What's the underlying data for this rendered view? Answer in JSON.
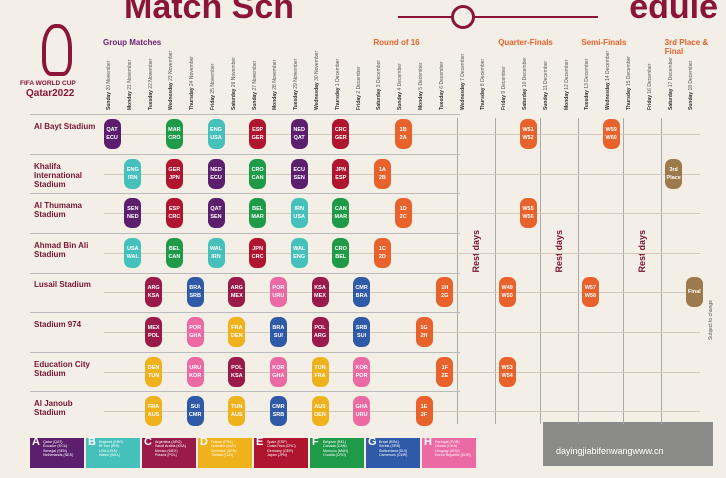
{
  "title_left": "Match Sch",
  "title_right": "edule",
  "logo": {
    "line1": "FIFA WORLD CUP",
    "line2": "Qatar2022"
  },
  "segments": [
    {
      "stage": "Group Matches",
      "dates": [
        {
          "day": "Sunday",
          "date": "20 November"
        },
        {
          "day": "Monday",
          "date": "21 November"
        },
        {
          "day": "Tuesday",
          "date": "22 November"
        },
        {
          "day": "Wednesday",
          "date": "23 November"
        },
        {
          "day": "Thursday",
          "date": "24 November"
        },
        {
          "day": "Friday",
          "date": "25 November"
        },
        {
          "day": "Saturday",
          "date": "26 November"
        },
        {
          "day": "Sunday",
          "date": "27 November"
        },
        {
          "day": "Monday",
          "date": "28 November"
        },
        {
          "day": "Tuesday",
          "date": "29 November"
        },
        {
          "day": "Wednesday",
          "date": "30 November"
        },
        {
          "day": "Thursday",
          "date": "1 December"
        },
        {
          "day": "Friday",
          "date": "2 December"
        }
      ]
    },
    {
      "stage": "Round of 16",
      "dates": [
        {
          "day": "Saturday",
          "date": "3 December"
        },
        {
          "day": "Sunday",
          "date": "4 December"
        },
        {
          "day": "Monday",
          "date": "5 December"
        },
        {
          "day": "Tuesday",
          "date": "6 December"
        }
      ]
    },
    {
      "rest": "Rest days",
      "dates": [
        {
          "day": "Wednesday",
          "date": "7 December"
        },
        {
          "day": "Thursday",
          "date": "8 December"
        }
      ]
    },
    {
      "stage": "Quarter-Finals",
      "dates": [
        {
          "day": "Friday",
          "date": "9 December"
        },
        {
          "day": "Saturday",
          "date": "10 December"
        }
      ]
    },
    {
      "rest": "Rest days",
      "dates": [
        {
          "day": "Sunday",
          "date": "11 December"
        },
        {
          "day": "Monday",
          "date": "12 December"
        }
      ]
    },
    {
      "stage": "Semi-Finals",
      "dates": [
        {
          "day": "Tuesday",
          "date": "13 December"
        },
        {
          "day": "Wednesday",
          "date": "14 December"
        }
      ]
    },
    {
      "rest": "Rest days",
      "dates": [
        {
          "day": "Thursday",
          "date": "15 December"
        },
        {
          "day": "Friday",
          "date": "16 December"
        }
      ]
    },
    {
      "stage": "3rd Place & Final",
      "dates": [
        {
          "day": "Saturday",
          "date": "17 December"
        },
        {
          "day": "Sunday",
          "date": "18 December"
        }
      ]
    }
  ],
  "knockout_color": "#e8622c",
  "stadiums": [
    {
      "name": "Al Bayt Stadium",
      "matches": [
        {
          "date": "20 November",
          "group": "A",
          "teams": [
            "QAT",
            "ECU"
          ]
        },
        {
          "date": "23 November",
          "group": "F",
          "teams": [
            "MAR",
            "CRO"
          ]
        },
        {
          "date": "25 November",
          "group": "B",
          "teams": [
            "ENG",
            "USA"
          ]
        },
        {
          "date": "27 November",
          "group": "E",
          "teams": [
            "ESP",
            "GER"
          ]
        },
        {
          "date": "29 November",
          "group": "A",
          "teams": [
            "NED",
            "QAT"
          ]
        },
        {
          "date": "1 December",
          "group": "E",
          "teams": [
            "CRC",
            "GER"
          ]
        },
        {
          "date": "4 December",
          "teams": [
            "1B",
            "2A"
          ]
        },
        {
          "date": "10 December",
          "teams": [
            "W51",
            "W52"
          ]
        },
        {
          "date": "14 December",
          "teams": [
            "W59",
            "W60"
          ]
        }
      ]
    },
    {
      "name": "Khalifa International Stadium",
      "matches": [
        {
          "date": "21 November",
          "group": "B",
          "teams": [
            "ENG",
            "IRN"
          ]
        },
        {
          "date": "23 November",
          "group": "E",
          "teams": [
            "GER",
            "JPN"
          ]
        },
        {
          "date": "25 November",
          "group": "A",
          "teams": [
            "NED",
            "ECU"
          ]
        },
        {
          "date": "27 November",
          "group": "F",
          "teams": [
            "CRO",
            "CAN"
          ]
        },
        {
          "date": "29 November",
          "group": "A",
          "teams": [
            "ECU",
            "SEN"
          ]
        },
        {
          "date": "1 December",
          "group": "E",
          "teams": [
            "JPN",
            "ESP"
          ]
        },
        {
          "date": "3 December",
          "teams": [
            "1A",
            "2B"
          ]
        },
        {
          "date": "17 December",
          "label": "3rd Place",
          "color": "#9c7a4c"
        }
      ]
    },
    {
      "name": "Al Thumama Stadium",
      "matches": [
        {
          "date": "21 November",
          "group": "A",
          "teams": [
            "SEN",
            "NED"
          ]
        },
        {
          "date": "23 November",
          "group": "E",
          "teams": [
            "ESP",
            "CRC"
          ]
        },
        {
          "date": "25 November",
          "group": "A",
          "teams": [
            "QAT",
            "SEN"
          ]
        },
        {
          "date": "27 November",
          "group": "F",
          "teams": [
            "BEL",
            "MAR"
          ]
        },
        {
          "date": "29 November",
          "group": "B",
          "teams": [
            "IRN",
            "USA"
          ]
        },
        {
          "date": "1 December",
          "group": "F",
          "teams": [
            "CAN",
            "MAR"
          ]
        },
        {
          "date": "4 December",
          "teams": [
            "1D",
            "2C"
          ]
        },
        {
          "date": "10 December",
          "teams": [
            "W55",
            "W56"
          ]
        }
      ]
    },
    {
      "name": "Ahmad Bin Ali Stadium",
      "matches": [
        {
          "date": "21 November",
          "group": "B",
          "teams": [
            "USA",
            "WAL"
          ]
        },
        {
          "date": "23 November",
          "group": "F",
          "teams": [
            "BEL",
            "CAN"
          ]
        },
        {
          "date": "25 November",
          "group": "B",
          "teams": [
            "WAL",
            "IRN"
          ]
        },
        {
          "date": "27 November",
          "group": "E",
          "teams": [
            "JPN",
            "CRC"
          ]
        },
        {
          "date": "29 November",
          "group": "B",
          "teams": [
            "WAL",
            "ENG"
          ]
        },
        {
          "date": "1 December",
          "group": "F",
          "teams": [
            "CRO",
            "BEL"
          ]
        },
        {
          "date": "3 December",
          "teams": [
            "1C",
            "2D"
          ]
        }
      ]
    },
    {
      "name": "Lusail Stadium",
      "matches": [
        {
          "date": "22 November",
          "group": "C",
          "teams": [
            "ARG",
            "KSA"
          ]
        },
        {
          "date": "24 November",
          "group": "G",
          "teams": [
            "BRA",
            "SRB"
          ]
        },
        {
          "date": "26 November",
          "group": "C",
          "teams": [
            "ARG",
            "MEX"
          ]
        },
        {
          "date": "28 November",
          "group": "H",
          "teams": [
            "POR",
            "URU"
          ]
        },
        {
          "date": "30 November",
          "group": "C",
          "teams": [
            "KSA",
            "MEX"
          ]
        },
        {
          "date": "2 December",
          "group": "G",
          "teams": [
            "CMR",
            "BRA"
          ]
        },
        {
          "date": "6 December",
          "teams": [
            "1H",
            "2G"
          ]
        },
        {
          "date": "9 December",
          "teams": [
            "W49",
            "W50"
          ]
        },
        {
          "date": "13 December",
          "teams": [
            "W57",
            "W58"
          ]
        },
        {
          "date": "18 December",
          "label": "Final",
          "color": "#9c7a4c"
        }
      ]
    },
    {
      "name": "Stadium 974",
      "matches": [
        {
          "date": "22 November",
          "group": "C",
          "teams": [
            "MEX",
            "POL"
          ]
        },
        {
          "date": "24 November",
          "group": "H",
          "teams": [
            "POR",
            "GHA"
          ]
        },
        {
          "date": "26 November",
          "group": "D",
          "teams": [
            "FRA",
            "DEN"
          ]
        },
        {
          "date": "28 November",
          "group": "G",
          "teams": [
            "BRA",
            "SUI"
          ]
        },
        {
          "date": "30 November",
          "group": "C",
          "teams": [
            "POL",
            "ARG"
          ]
        },
        {
          "date": "2 December",
          "group": "G",
          "teams": [
            "SRB",
            "SUI"
          ]
        },
        {
          "date": "5 December",
          "teams": [
            "1G",
            "2H"
          ]
        }
      ]
    },
    {
      "name": "Education City Stadium",
      "matches": [
        {
          "date": "22 November",
          "group": "D",
          "teams": [
            "DEN",
            "TUN"
          ]
        },
        {
          "date": "24 November",
          "group": "H",
          "teams": [
            "URU",
            "KOR"
          ]
        },
        {
          "date": "26 November",
          "group": "C",
          "teams": [
            "POL",
            "KSA"
          ]
        },
        {
          "date": "28 November",
          "group": "H",
          "teams": [
            "KOR",
            "GHA"
          ]
        },
        {
          "date": "30 November",
          "group": "D",
          "teams": [
            "TUN",
            "FRA"
          ]
        },
        {
          "date": "2 December",
          "group": "H",
          "teams": [
            "KOR",
            "POR"
          ]
        },
        {
          "date": "6 December",
          "teams": [
            "1F",
            "2E"
          ]
        },
        {
          "date": "9 December",
          "teams": [
            "W53",
            "W54"
          ]
        }
      ]
    },
    {
      "name": "Al Janoub Stadium",
      "matches": [
        {
          "date": "22 November",
          "group": "D",
          "teams": [
            "FRA",
            "AUS"
          ]
        },
        {
          "date": "24 November",
          "group": "G",
          "teams": [
            "SUI",
            "CMR"
          ]
        },
        {
          "date": "26 November",
          "group": "D",
          "teams": [
            "TUN",
            "AUS"
          ]
        },
        {
          "date": "28 November",
          "group": "G",
          "teams": [
            "CMR",
            "SRB"
          ]
        },
        {
          "date": "30 November",
          "group": "D",
          "teams": [
            "AUS",
            "DEN"
          ]
        },
        {
          "date": "2 December",
          "group": "H",
          "teams": [
            "GHA",
            "URU"
          ]
        },
        {
          "date": "5 December",
          "teams": [
            "1E",
            "2F"
          ]
        }
      ]
    }
  ],
  "groups": [
    {
      "letter": "A",
      "color": "#5b1f6e",
      "teams": [
        "Qatar (QAT)",
        "Ecuador (ECU)",
        "Senegal (SEN)",
        "Netherlands (NED)"
      ]
    },
    {
      "letter": "B",
      "color": "#45c0bb",
      "teams": [
        "England (ENG)",
        "IR Iran (IRN)",
        "USA (USA)",
        "Wales (WAL)"
      ]
    },
    {
      "letter": "C",
      "color": "#9a1b4a",
      "teams": [
        "Argentina (ARG)",
        "Saudi Arabia (KSA)",
        "Mexico (MEX)",
        "Poland (POL)"
      ]
    },
    {
      "letter": "D",
      "color": "#f0b21c",
      "teams": [
        "France (FRA)",
        "Australia (AUS)",
        "Denmark (DEN)",
        "Tunisia (TUN)"
      ]
    },
    {
      "letter": "E",
      "color": "#b01530",
      "teams": [
        "Spain (ESP)",
        "Costa Rica (CRC)",
        "Germany (GER)",
        "Japan (JPN)"
      ]
    },
    {
      "letter": "F",
      "color": "#1f9a48",
      "teams": [
        "Belgium (BEL)",
        "Canada (CAN)",
        "Morocco (MAR)",
        "Croatia (CRO)"
      ]
    },
    {
      "letter": "G",
      "color": "#2f5aa8",
      "teams": [
        "Brazil (BRA)",
        "Serbia (SRB)",
        "Switzerland (SUI)",
        "Cameroon (CMR)"
      ]
    },
    {
      "letter": "H",
      "color": "#ec6aa4",
      "teams": [
        "Portugal (POR)",
        "Ghana (GHA)",
        "Uruguay (URU)",
        "Korea Republic (KOR)"
      ]
    }
  ],
  "side_note": "Subject to change",
  "watermark": "dayingjiabifenwangwww.cn"
}
